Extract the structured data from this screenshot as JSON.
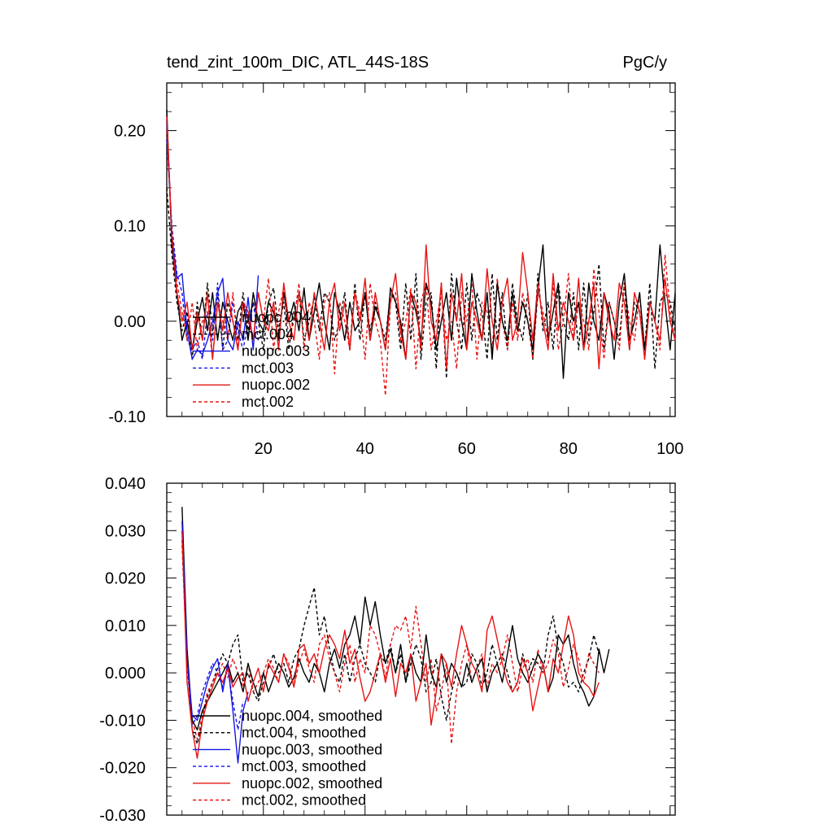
{
  "chart_data": [
    {
      "type": "line",
      "title": "tend_zint_100m_DIC, ATL_44S-18S",
      "units": "PgC/y",
      "xlim": [
        1,
        101
      ],
      "ylim": [
        -0.1,
        0.25
      ],
      "xticks": [
        20,
        40,
        60,
        80,
        100
      ],
      "yticks": [
        -0.1,
        0.0,
        0.1,
        0.2
      ],
      "ytick_labels": [
        "-0.10",
        "0.00",
        "0.10",
        "0.20"
      ],
      "legend_position": "lower-left",
      "series": [
        {
          "name": "nuopc.004",
          "color": "#000000",
          "dash": "solid",
          "x_start": 1,
          "values": [
            0.222,
            0.08,
            0.03,
            -0.02,
            0.0,
            -0.03,
            0.0,
            0.025,
            -0.01,
            0.03,
            -0.02,
            0.02,
            0.0,
            -0.02,
            0.01,
            0.02,
            -0.02,
            0.03,
            0.0,
            -0.01,
            0.02,
            0.01,
            -0.02,
            0.03,
            0.0,
            0.02,
            -0.01,
            0.035,
            -0.02,
            0.01,
            0.04,
            0.0,
            -0.03,
            0.03,
            0.01,
            -0.02,
            0.02,
            -0.01,
            0.0,
            0.03,
            -0.02,
            0.015,
            0.0,
            -0.03,
            0.035,
            0.02,
            0.0,
            -0.04,
            0.03,
            0.01,
            -0.02,
            0.04,
            0.02,
            -0.03,
            0.0,
            0.03,
            -0.02,
            0.045,
            0.0,
            -0.03,
            0.05,
            0.01,
            -0.02,
            0.03,
            -0.04,
            0.04,
            0.0,
            -0.02,
            0.03,
            -0.01,
            0.02,
            0.0,
            -0.03,
            0.035,
            0.08,
            -0.02,
            0.01,
            0.04,
            -0.06,
            0.03,
            0.0,
            0.02,
            -0.03,
            0.04,
            0.0,
            -0.02,
            0.03,
            0.01,
            -0.04,
            0.02,
            0.05,
            -0.02,
            0.0,
            0.03,
            -0.03,
            0.02,
            0.0,
            0.08,
            0.02,
            -0.03,
            0.03
          ]
        },
        {
          "name": "mct.004",
          "color": "#000000",
          "dash": "dashed",
          "x_start": 1,
          "values": [
            0.14,
            0.07,
            0.02,
            -0.01,
            0.01,
            -0.04,
            0.02,
            -0.02,
            0.04,
            -0.01,
            0.03,
            -0.03,
            0.02,
            0.0,
            -0.02,
            0.03,
            -0.01,
            0.02,
            0.0,
            -0.03,
            0.02,
            0.035,
            -0.01,
            0.02,
            -0.03,
            0.01,
            0.03,
            -0.02,
            0.0,
            0.025,
            -0.01,
            0.03,
            0.02,
            -0.02,
            0.0,
            0.03,
            -0.03,
            0.04,
            -0.02,
            0.03,
            -0.01,
            0.02,
            0.0,
            -0.02,
            0.03,
            0.02,
            -0.03,
            0.04,
            -0.02,
            0.05,
            -0.04,
            0.02,
            0.03,
            -0.05,
            0.04,
            -0.06,
            0.05,
            0.0,
            -0.03,
            0.04,
            -0.02,
            0.03,
            0.01,
            -0.04,
            0.05,
            -0.02,
            0.03,
            -0.03,
            0.04,
            0.0,
            -0.02,
            0.03,
            -0.04,
            0.05,
            -0.01,
            0.02,
            -0.03,
            0.04,
            0.0,
            -0.02,
            0.03,
            -0.03,
            0.04,
            -0.02,
            0.01,
            0.06,
            -0.03,
            0.02,
            0.0,
            -0.02,
            0.04,
            -0.03,
            0.02,
            0.01,
            -0.03,
            0.04,
            -0.05,
            0.02,
            0.03,
            0.02,
            -0.01
          ]
        },
        {
          "name": "nuopc.003",
          "color": "#1414e6",
          "dash": "solid",
          "x_start": 1,
          "values": [
            0.21,
            0.09,
            0.045,
            0.05,
            -0.01,
            -0.04,
            -0.03,
            -0.035,
            -0.02,
            0.0,
            0.03,
            0.045,
            -0.02,
            -0.03,
            0.0,
            -0.02,
            0.025,
            -0.03,
            0.048
          ]
        },
        {
          "name": "mct.003",
          "color": "#1414e6",
          "dash": "dashed",
          "x_start": 1,
          "values": [
            0.19,
            0.1,
            0.05,
            0.03,
            -0.02,
            -0.03,
            -0.02,
            -0.04,
            0.01,
            -0.02,
            0.04,
            -0.03,
            -0.02,
            0.02,
            -0.01,
            -0.03,
            0.0,
            0.02,
            -0.02
          ]
        },
        {
          "name": "nuopc.002",
          "color": "#e61414",
          "dash": "solid",
          "x_start": 1,
          "values": [
            0.215,
            0.09,
            0.03,
            0.0,
            0.02,
            -0.03,
            0.01,
            -0.02,
            0.03,
            -0.04,
            0.02,
            -0.01,
            0.03,
            0.0,
            -0.03,
            0.02,
            0.01,
            -0.02,
            0.03,
            0.0,
            -0.01,
            0.02,
            -0.03,
            0.04,
            0.0,
            -0.02,
            0.03,
            0.01,
            -0.02,
            0.03,
            0.0,
            -0.03,
            0.02,
            0.04,
            -0.01,
            0.02,
            -0.03,
            0.03,
            0.0,
            0.045,
            -0.02,
            0.03,
            0.0,
            -0.03,
            0.02,
            0.05,
            -0.01,
            -0.04,
            0.03,
            0.02,
            -0.03,
            0.08,
            0.0,
            -0.02,
            0.04,
            -0.05,
            0.03,
            0.0,
            0.05,
            -0.03,
            0.02,
            0.0,
            -0.02,
            0.055,
            0.0,
            -0.03,
            0.02,
            0.045,
            -0.02,
            0.0,
            0.072,
            0.03,
            -0.02,
            0.04,
            0.0,
            -0.03,
            0.05,
            -0.01,
            0.02,
            0.0,
            -0.02,
            0.045,
            -0.03,
            0.0,
            0.04,
            -0.05,
            0.03,
            0.0,
            -0.02,
            0.04,
            0.02,
            -0.03,
            0.03,
            0.01,
            -0.04,
            0.02,
            0.0,
            -0.02,
            0.045,
            0.0,
            -0.02
          ]
        },
        {
          "name": "mct.002",
          "color": "#e61414",
          "dash": "dashed",
          "x_start": 1,
          "values": [
            0.2,
            0.09,
            0.04,
            0.01,
            -0.02,
            0.02,
            -0.03,
            0.0,
            0.01,
            -0.04,
            0.02,
            0.0,
            -0.02,
            0.03,
            -0.03,
            0.02,
            0.0,
            -0.02,
            0.03,
            0.0,
            0.045,
            -0.03,
            0.01,
            0.035,
            -0.02,
            0.0,
            0.04,
            -0.03,
            0.02,
            0.0,
            -0.04,
            0.02,
            0.03,
            -0.055,
            0.02,
            0.0,
            -0.03,
            0.03,
            0.01,
            -0.04,
            0.04,
            0.0,
            -0.02,
            -0.078,
            0.02,
            0.03,
            -0.02,
            0.0,
            0.035,
            -0.05,
            0.02,
            0.04,
            -0.03,
            0.0,
            0.03,
            -0.02,
            0.0,
            -0.05,
            0.03,
            0.0,
            0.04,
            -0.04,
            0.02,
            0.01,
            -0.03,
            0.045,
            0.0,
            -0.03,
            0.02,
            -0.02,
            0.03,
            0.0,
            -0.04,
            0.03,
            0.01,
            -0.02,
            0.04,
            -0.03,
            0.0,
            0.05,
            -0.02,
            0.02,
            0.0,
            -0.03,
            0.055,
            0.01,
            -0.04,
            0.02,
            0.0,
            -0.03,
            0.04,
            0.0,
            -0.02,
            0.03,
            -0.04,
            0.02,
            0.0,
            -0.03,
            0.07,
            0.01,
            -0.02
          ]
        }
      ]
    },
    {
      "type": "line",
      "title": "",
      "xlim": [
        1,
        101
      ],
      "ylim": [
        -0.03,
        0.04
      ],
      "xticks": [
        20,
        40,
        60,
        80,
        100
      ],
      "yticks": [
        -0.03,
        -0.02,
        -0.01,
        0.0,
        0.01,
        0.02,
        0.03,
        0.04
      ],
      "ytick_labels": [
        "-0.030",
        "-0.020",
        "-0.010",
        "0.000",
        "0.010",
        "0.020",
        "0.030",
        "0.040"
      ],
      "legend_position": "lower-left",
      "series": [
        {
          "name": "nuopc.004, smoothed",
          "color": "#000000",
          "dash": "solid",
          "x_start": 4,
          "values": [
            0.035,
            0.005,
            -0.01,
            -0.012,
            -0.008,
            -0.006,
            -0.004,
            -0.002,
            0.0,
            0.002,
            -0.002,
            0.0,
            -0.004,
            0.002,
            -0.002,
            -0.005,
            0.0,
            -0.004,
            -0.001,
            0.002,
            0.0,
            -0.003,
            -0.001,
            0.003,
            0.0,
            -0.002,
            0.002,
            0.0,
            -0.004,
            0.002,
            0.005,
            0.001,
            0.006,
            0.008,
            0.012,
            0.006,
            0.016,
            0.01,
            0.015,
            0.008,
            0.002,
            0.005,
            0.0,
            0.006,
            -0.002,
            0.004,
            0.0,
            -0.002,
            0.008,
            0.0,
            -0.003,
            0.004,
            -0.002,
            0.002,
            0.0,
            -0.003,
            0.002,
            -0.002,
            0.001,
            0.003,
            -0.004,
            0.0,
            0.002,
            -0.002,
            0.004,
            0.01,
            0.003,
            0.0,
            -0.002,
            0.001,
            0.004,
            0.002,
            -0.004,
            -0.001,
            0.008,
            0.006,
            0.008,
            0.002,
            -0.002,
            -0.004,
            -0.007,
            -0.005,
            0.005,
            0.0,
            0.005
          ]
        },
        {
          "name": "mct.004, smoothed",
          "color": "#000000",
          "dash": "dashed",
          "x_start": 4,
          "values": [
            0.03,
            0.004,
            -0.012,
            -0.015,
            -0.01,
            -0.005,
            -0.002,
            0.001,
            0.004,
            0.002,
            0.006,
            0.008,
            -0.002,
            0.0,
            -0.004,
            -0.006,
            -0.002,
            0.001,
            0.004,
            0.0,
            0.002,
            -0.002,
            0.003,
            0.005,
            0.01,
            0.014,
            0.018,
            0.008,
            0.012,
            0.005,
            0.0,
            -0.002,
            0.004,
            -0.002,
            0.003,
            0.006,
            0.002,
            0.0,
            -0.002,
            0.004,
            0.002,
            0.006,
            0.0,
            0.004,
            -0.002,
            0.002,
            0.006,
            0.003,
            -0.004,
            -0.002,
            0.003,
            -0.005,
            -0.01,
            -0.004,
            0.0,
            -0.003,
            -0.002,
            0.004,
            0.002,
            -0.003,
            0.0,
            0.006,
            0.002,
            0.004,
            0.0,
            -0.004,
            -0.002,
            0.004,
            0.0,
            0.003,
            0.002,
            0.0,
            0.008,
            0.012,
            0.005,
            0.002,
            -0.003,
            -0.002,
            -0.004,
            0.0,
            0.003,
            0.008,
            0.004
          ]
        },
        {
          "name": "nuopc.003, smoothed",
          "color": "#1414e6",
          "dash": "solid",
          "x_start": 4,
          "values": [
            0.032,
            0.003,
            -0.009,
            -0.01,
            -0.006,
            -0.002,
            0.001,
            0.003,
            -0.004,
            0.002,
            -0.008,
            -0.019,
            -0.008,
            -0.004
          ]
        },
        {
          "name": "mct.003, smoothed",
          "color": "#1414e6",
          "dash": "dashed",
          "x_start": 4,
          "values": [
            0.028,
            0.002,
            -0.011,
            -0.009,
            -0.004,
            -0.001,
            0.002,
            0.0,
            -0.003,
            0.001,
            -0.006,
            -0.012,
            -0.006
          ]
        },
        {
          "name": "nuopc.002, smoothed",
          "color": "#e61414",
          "dash": "solid",
          "x_start": 4,
          "values": [
            0.03,
            -0.002,
            -0.012,
            -0.018,
            -0.01,
            -0.006,
            -0.003,
            0.0,
            -0.002,
            0.001,
            -0.003,
            -0.001,
            0.0,
            -0.006,
            -0.002,
            0.001,
            -0.004,
            0.002,
            0.0,
            -0.002,
            0.004,
            0.001,
            -0.003,
            0.005,
            0.006,
            0.002,
            0.004,
            0.0,
            0.005,
            0.008,
            0.006,
            0.003,
            0.009,
            0.002,
            0.005,
            -0.001,
            -0.006,
            -0.004,
            0.0,
            0.004,
            -0.002,
            0.003,
            -0.005,
            0.002,
            0.0,
            0.004,
            -0.006,
            -0.002,
            0.002,
            -0.011,
            -0.004,
            0.004,
            0.002,
            -0.003,
            0.004,
            0.01,
            0.006,
            0.002,
            0.0,
            -0.004,
            0.009,
            0.012,
            0.007,
            0.002,
            -0.002,
            -0.004,
            -0.002,
            0.003,
            0.0,
            -0.008,
            -0.003,
            0.002,
            -0.004,
            0.003,
            0.0,
            0.006,
            0.012,
            0.008,
            0.0,
            -0.002,
            -0.003,
            -0.005,
            -0.002
          ]
        },
        {
          "name": "mct.002, smoothed",
          "color": "#e61414",
          "dash": "dashed",
          "x_start": 4,
          "values": [
            0.027,
            0.001,
            -0.01,
            -0.014,
            -0.009,
            -0.004,
            -0.002,
            0.0,
            0.002,
            -0.001,
            0.003,
            0.0,
            -0.003,
            0.002,
            -0.004,
            -0.002,
            0.0,
            0.003,
            0.001,
            -0.002,
            0.004,
            0.002,
            -0.003,
            0.002,
            0.005,
            0.001,
            -0.002,
            0.006,
            0.008,
            0.003,
            0.0,
            -0.004,
            0.002,
            0.006,
            -0.002,
            0.003,
            0.0,
            0.01,
            0.008,
            0.004,
            -0.001,
            0.006,
            0.01,
            0.009,
            0.012,
            0.005,
            0.014,
            0.006,
            -0.002,
            0.003,
            -0.008,
            -0.004,
            0.002,
            -0.015,
            -0.004,
            0.002,
            0.006,
            -0.002,
            0.001,
            0.004,
            -0.003,
            0.002,
            0.0,
            0.003,
            0.008,
            0.002,
            -0.004,
            0.001,
            0.003,
            -0.002,
            0.005,
            0.0,
            0.002,
            0.007,
            0.004,
            -0.003,
            0.001,
            0.006,
            0.003,
            -0.002,
            0.004,
            0.002,
            0.0
          ]
        }
      ]
    }
  ]
}
